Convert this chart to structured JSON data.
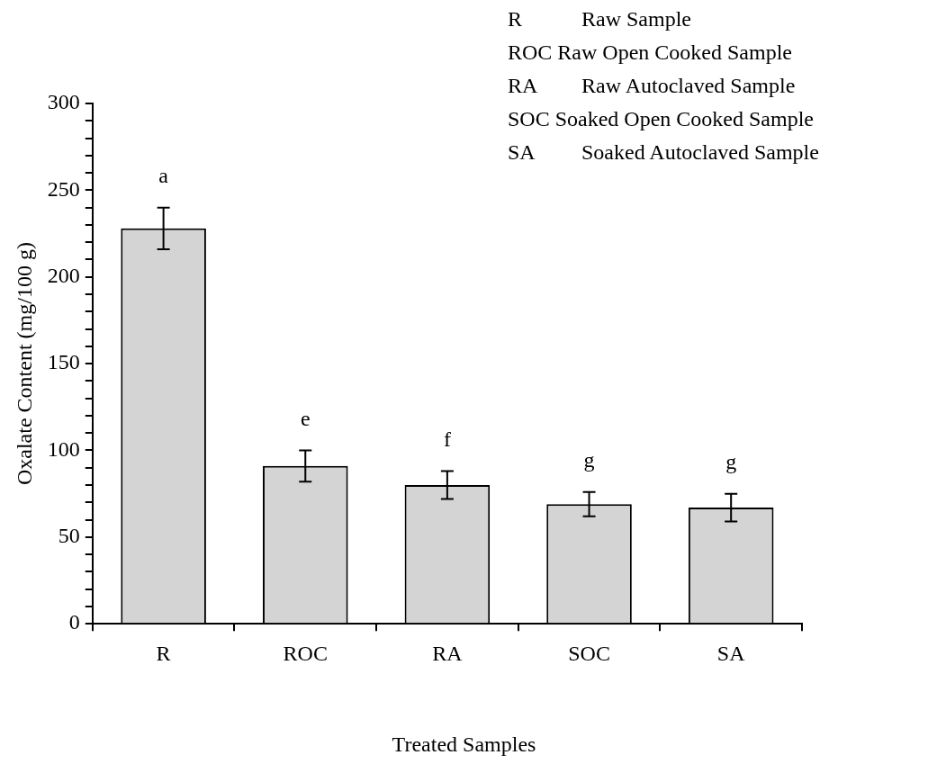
{
  "chart_data": {
    "type": "bar",
    "xlabel": "Treated Samples",
    "ylabel": "Oxalate Content (mg/100 g)",
    "categories": [
      "R",
      "ROC",
      "RA",
      "SOC",
      "SA"
    ],
    "values": [
      228,
      91,
      80,
      69,
      67
    ],
    "errors": [
      12,
      9,
      8,
      7,
      8
    ],
    "color": "#d4d4d4",
    "ylim": [
      0,
      300
    ],
    "yticks": [
      0,
      {
        "value": 10,
        "label": null
      },
      {
        "value": 20,
        "label": null
      },
      {
        "value": 30,
        "label": null
      },
      {
        "value": 40,
        "label": null
      },
      50,
      {
        "value": 60,
        "label": null
      },
      {
        "value": 70,
        "label": null
      },
      {
        "value": 80,
        "label": null
      },
      {
        "value": 90,
        "label": null
      },
      100,
      {
        "value": 110,
        "label": null
      },
      {
        "value": 120,
        "label": null
      },
      {
        "value": 130,
        "label": null
      },
      {
        "value": 140,
        "label": null
      },
      150,
      {
        "value": 160,
        "label": null
      },
      {
        "value": 170,
        "label": null
      },
      {
        "value": 180,
        "label": null
      },
      {
        "value": 190,
        "label": null
      },
      200,
      {
        "value": 210,
        "label": null
      },
      {
        "value": 220,
        "label": null
      },
      {
        "value": 230,
        "label": null
      },
      {
        "value": 240,
        "label": null
      },
      250,
      {
        "value": 260,
        "label": null
      },
      {
        "value": 270,
        "label": null
      },
      {
        "value": 280,
        "label": null
      },
      {
        "value": 290,
        "label": null
      },
      300
    ],
    "grid": false,
    "legend": false,
    "value_labels": [
      "a",
      "e",
      "f",
      "g",
      "g"
    ],
    "annotations": [
      "R Raw Sample",
      "ROC Raw Open Cooked Sample",
      "RA Raw Autoclaved Sample",
      "SOC Soaked Open Cooked Sample",
      "SA Soaked Autoclaved Sample"
    ]
  }
}
